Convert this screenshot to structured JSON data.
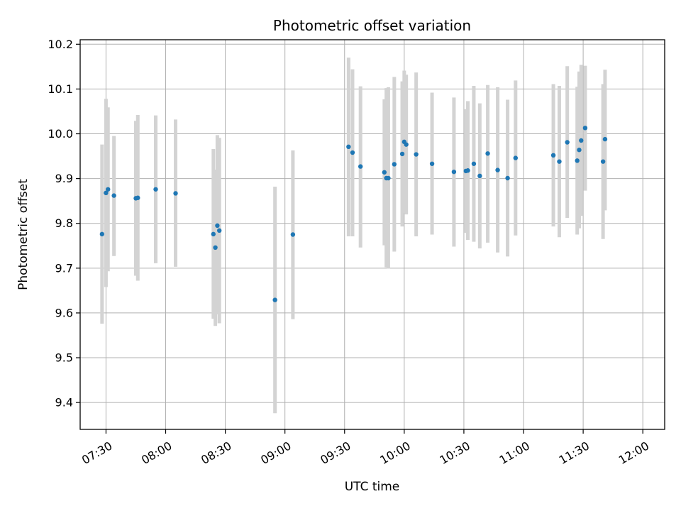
{
  "chart_data": {
    "type": "scatter",
    "title": "Photometric offset variation",
    "xlabel": "UTC time",
    "ylabel": "Photometric offset",
    "x_ticks": [
      "07:30",
      "08:00",
      "08:30",
      "09:00",
      "09:30",
      "10:00",
      "10:30",
      "11:00",
      "11:30",
      "12:00"
    ],
    "y_ticks": [
      "9.4",
      "9.5",
      "9.6",
      "9.7",
      "9.8",
      "9.9",
      "10.0",
      "10.1",
      "10.2"
    ],
    "xlim": [
      "07:17",
      "12:11"
    ],
    "ylim": [
      9.34,
      10.21
    ],
    "grid": true,
    "colors": {
      "points": "#1f77b4",
      "errorbars": "#d3d3d3",
      "grid": "#b0b0b0"
    },
    "series": [
      {
        "x": [
          "07:28",
          "07:30",
          "07:31",
          "07:34",
          "07:45",
          "07:46",
          "07:55",
          "08:05",
          "08:24",
          "08:25",
          "08:26",
          "08:27",
          "08:55",
          "09:04",
          "09:32",
          "09:34",
          "09:38",
          "09:50",
          "09:51",
          "09:52",
          "09:55",
          "09:59",
          "10:00",
          "10:01",
          "10:06",
          "10:14",
          "10:25",
          "10:31",
          "10:32",
          "10:35",
          "10:38",
          "10:42",
          "10:47",
          "10:52",
          "10:56",
          "11:15",
          "11:18",
          "11:22",
          "11:27",
          "11:28",
          "11:29",
          "11:31",
          "11:40",
          "11:41"
        ],
        "y": [
          9.776,
          9.868,
          9.876,
          9.862,
          9.856,
          9.857,
          9.876,
          9.867,
          9.776,
          9.746,
          9.795,
          9.784,
          9.629,
          9.775,
          9.971,
          9.958,
          9.927,
          9.914,
          9.901,
          9.901,
          9.932,
          9.955,
          9.982,
          9.976,
          9.954,
          9.933,
          9.915,
          9.917,
          9.918,
          9.933,
          9.906,
          9.956,
          9.919,
          9.901,
          9.946,
          9.952,
          9.938,
          9.981,
          9.94,
          9.964,
          9.985,
          10.013,
          9.938,
          9.988
        ],
        "yerr_low": [
          9.576,
          9.658,
          9.693,
          9.727,
          9.683,
          9.672,
          9.711,
          9.703,
          9.587,
          9.571,
          9.597,
          9.577,
          9.376,
          9.586,
          9.771,
          9.771,
          9.746,
          9.751,
          9.702,
          9.699,
          9.737,
          9.793,
          9.823,
          9.82,
          9.771,
          9.775,
          9.748,
          9.779,
          9.763,
          9.759,
          9.744,
          9.757,
          9.735,
          9.726,
          9.773,
          9.793,
          9.769,
          9.812,
          9.775,
          9.789,
          9.817,
          9.873,
          9.765,
          9.829
        ],
        "yerr_high": [
          9.976,
          10.078,
          10.059,
          9.995,
          10.029,
          10.042,
          10.041,
          10.032,
          9.966,
          9.92,
          9.997,
          9.991,
          9.882,
          9.963,
          10.17,
          10.144,
          10.106,
          10.077,
          10.102,
          10.104,
          10.127,
          10.117,
          10.141,
          10.132,
          10.137,
          10.092,
          10.081,
          10.055,
          10.073,
          10.107,
          10.068,
          10.109,
          10.104,
          10.076,
          10.119,
          10.111,
          10.107,
          10.151,
          10.105,
          10.139,
          10.154,
          10.152,
          10.111,
          10.143
        ]
      }
    ]
  }
}
